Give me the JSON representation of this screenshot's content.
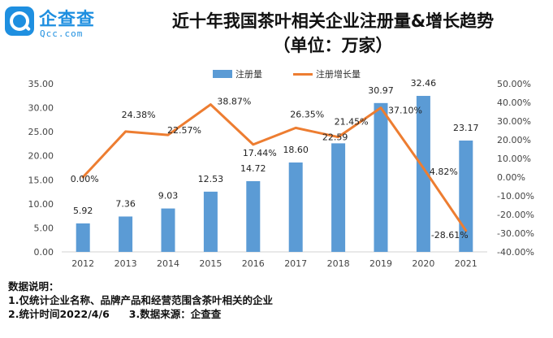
{
  "logo": {
    "name_cn": "企查查",
    "name_en": "Qcc.com",
    "brand_color": "#1e8fe0"
  },
  "title": "近十年我国茶叶相关企业注册量&增长趋势",
  "subtitle": "（单位：万家）",
  "chart_data": {
    "type": "bar+line",
    "categories": [
      "2012",
      "2013",
      "2014",
      "2015",
      "2016",
      "2017",
      "2018",
      "2019",
      "2020",
      "2021"
    ],
    "series": [
      {
        "name": "注册量",
        "type": "bar",
        "axis": "left",
        "color": "#5b9bd5",
        "values": [
          5.92,
          7.36,
          9.03,
          12.53,
          14.72,
          18.6,
          22.59,
          30.97,
          32.46,
          23.17
        ],
        "labels": [
          "5.92",
          "7.36",
          "9.03",
          "12.53",
          "14.72",
          "18.60",
          "22.59",
          "30.97",
          "32.46",
          "23.17"
        ]
      },
      {
        "name": "注册增长量",
        "type": "line",
        "axis": "right",
        "color": "#ed7d31",
        "values": [
          0.0,
          24.38,
          22.57,
          38.87,
          17.44,
          26.35,
          21.45,
          37.1,
          4.82,
          -28.61
        ],
        "labels": [
          "0.00%",
          "24.38%",
          "22.57%",
          "38.87%",
          "17.44%",
          "26.35%",
          "21.45%",
          "37.10%",
          "4.82%",
          "-28.61%"
        ]
      }
    ],
    "y_left": {
      "min": 0,
      "max": 35,
      "ticks": [
        "0.00",
        "5.00",
        "10.00",
        "15.00",
        "20.00",
        "25.00",
        "30.00",
        "35.00"
      ]
    },
    "y_right": {
      "min": -40,
      "max": 50,
      "ticks": [
        "-40.00%",
        "-30.00%",
        "-20.00%",
        "-10.00%",
        "0.00%",
        "10.00%",
        "20.00%",
        "30.00%",
        "40.00%",
        "50.00%"
      ]
    },
    "legend": "top-center",
    "grid": false
  },
  "notes": {
    "heading": "数据说明：",
    "line1": "1.仅统计企业名称、品牌产品和经营范围含茶叶相关的企业",
    "line2": "2.统计时间2022/4/6",
    "line3": "3.数据来源：企查查"
  }
}
